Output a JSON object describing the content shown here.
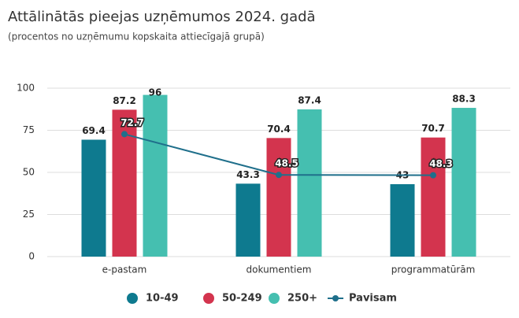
{
  "chart_data": {
    "type": "bar",
    "title": "Attālinātās pieejas uzņēmumos 2024. gadā",
    "subtitle": "(procentos no uzņēmumu kopskaita attiecīgajā grupā)",
    "categories": [
      "e-pastam",
      "dokumentiem",
      "programmatūrām"
    ],
    "series": [
      {
        "name": "10-49",
        "color": "#0e7a8f",
        "values": [
          69.4,
          43.3,
          43
        ]
      },
      {
        "name": "50-249",
        "color": "#d3344e",
        "values": [
          87.2,
          70.4,
          70.7
        ]
      },
      {
        "name": "250+",
        "color": "#45bfb0",
        "values": [
          96,
          87.4,
          88.3
        ]
      },
      {
        "name": "Pavisam",
        "color": "#1f6f8b",
        "type": "line",
        "values": [
          72.7,
          48.5,
          48.3
        ]
      }
    ],
    "ylim": [
      0,
      100
    ],
    "yticks": [
      0,
      25,
      50,
      75,
      100
    ],
    "grid": true
  }
}
